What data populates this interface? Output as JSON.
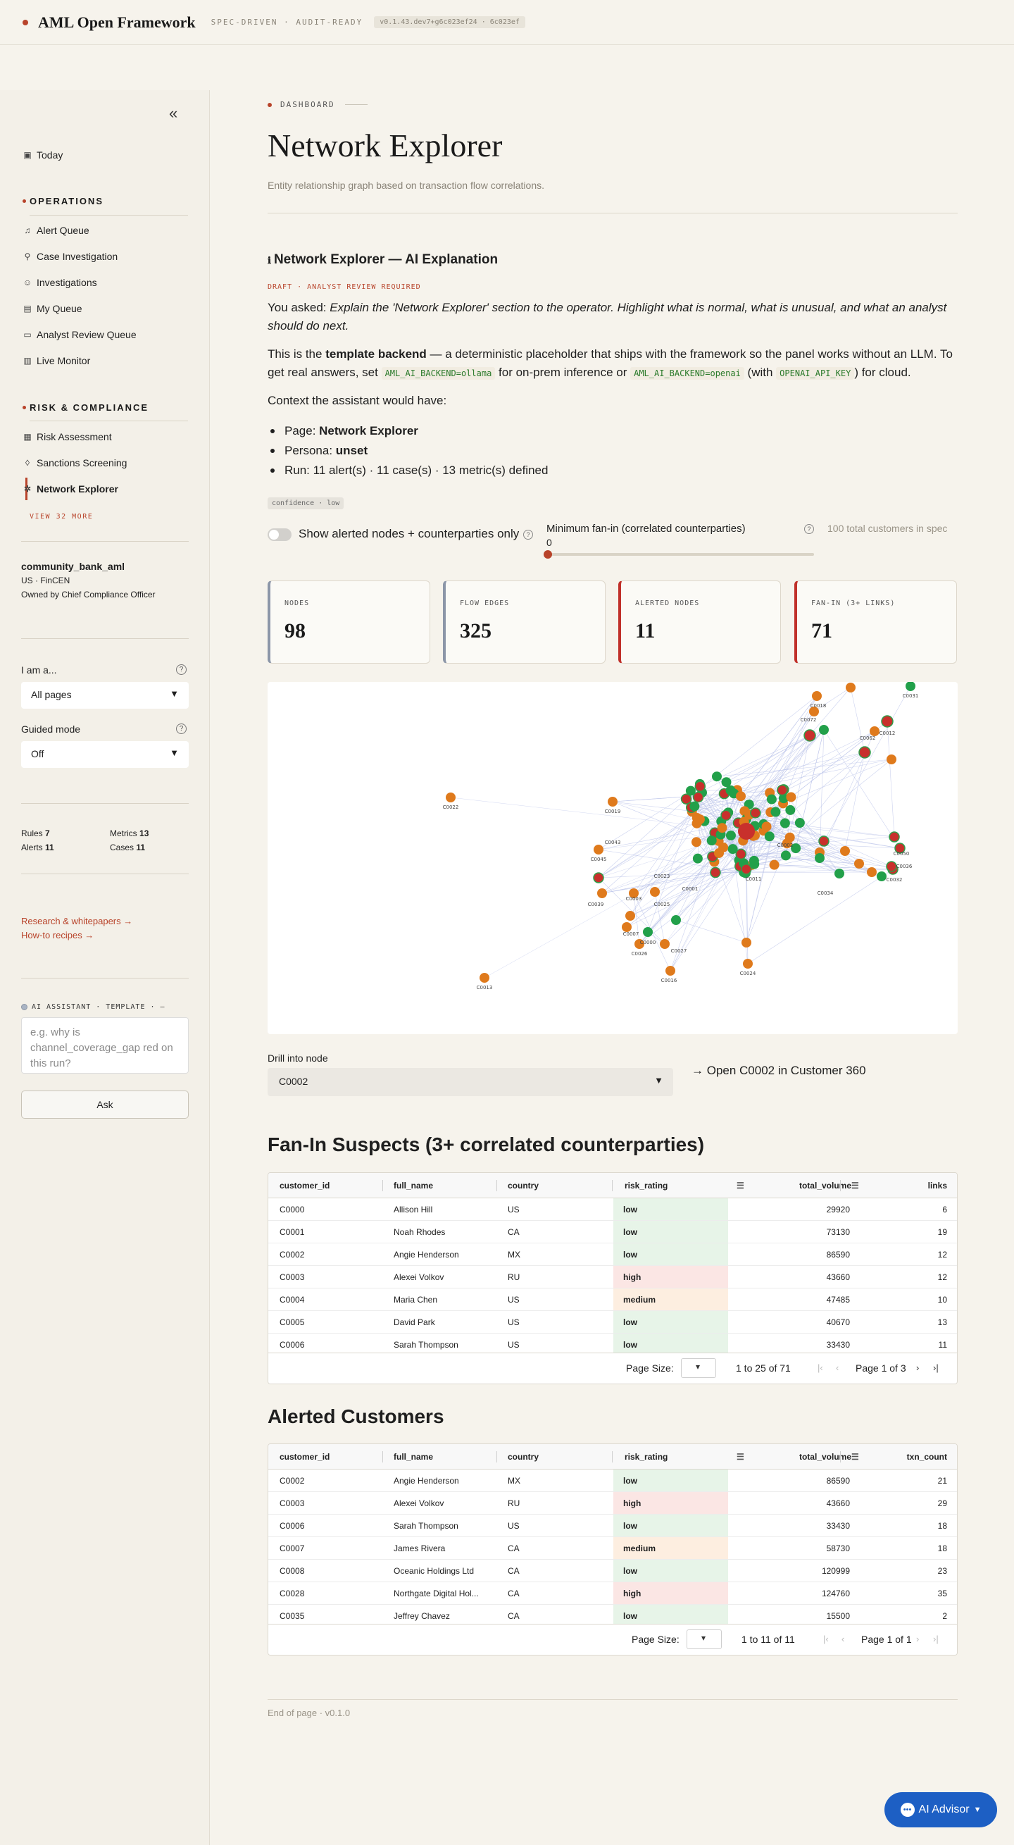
{
  "header": {
    "brand": "AML Open Framework",
    "tagline": "SPEC-DRIVEN · AUDIT-READY",
    "version": "v0.1.43.dev7+g6c023ef24 · 6c023ef"
  },
  "sidebar": {
    "collapse_icon": "«",
    "today": "Today",
    "operations_title": "OPERATIONS",
    "operations": [
      "Alert Queue",
      "Case Investigation",
      "Investigations",
      "My Queue",
      "Analyst Review Queue",
      "Live Monitor"
    ],
    "risk_title": "RISK & COMPLIANCE",
    "risk": [
      "Risk Assessment",
      "Sanctions Screening",
      "Network Explorer"
    ],
    "view_more": "VIEW 32 MORE",
    "spec_name": "community_bank_aml",
    "spec_region": "US · FinCEN",
    "spec_owner": "Owned by Chief Compliance Officer",
    "persona_label": "I am a...",
    "persona_value": "All pages",
    "guided_label": "Guided mode",
    "guided_value": "Off",
    "stats": {
      "rules_label": "Rules",
      "rules": "7",
      "metrics_label": "Metrics",
      "metrics": "13",
      "alerts_label": "Alerts",
      "alerts": "11",
      "cases_label": "Cases",
      "cases": "11"
    },
    "link_research": "Research & whitepapers →",
    "link_recipes": "How-to recipes →",
    "ai_label": "AI ASSISTANT · TEMPLATE · —",
    "ai_placeholder": "e.g. why is channel_coverage_gap red on this run?",
    "ask_label": "Ask"
  },
  "page": {
    "breadcrumb": "DASHBOARD",
    "title": "Network Explorer",
    "subtitle": "Entity relationship graph based on transaction flow correlations."
  },
  "explanation": {
    "title": "Network Explorer — AI Explanation",
    "draft": "DRAFT · ANALYST REVIEW REQUIRED",
    "asked_prefix": "You asked: ",
    "asked": "Explain the 'Network Explorer' section to the operator. Highlight what is normal, what is unusual, and what an analyst should do next.",
    "p1_a": "This is the ",
    "p1_b": "template backend",
    "p1_c": " — a deterministic placeholder that ships with the framework so the panel works without an LLM. To get real answers, set ",
    "code1": "AML_AI_BACKEND=ollama",
    "p1_d": " for on-prem inference or ",
    "code2": "AML_AI_BACKEND=openai",
    "p1_e": " (with ",
    "code3": "OPENAI_API_KEY",
    "p1_f": ") for cloud.",
    "context": "Context the assistant would have:",
    "b1_label": "Page: ",
    "b1_value": "Network Explorer",
    "b2_label": "Persona: ",
    "b2_value": "unset",
    "b3": "Run: 11 alert(s) · 11 case(s) · 13 metric(s) defined",
    "confidence": "confidence · low"
  },
  "controls": {
    "toggle_label": "Show alerted nodes + counterparties only",
    "fanin_label": "Minimum fan-in (correlated counterparties)",
    "fanin_value": "0",
    "total_customers": "100 total customers in spec"
  },
  "cards": [
    {
      "label": "NODES",
      "value": "98"
    },
    {
      "label": "FLOW EDGES",
      "value": "325"
    },
    {
      "label": "ALERTED NODES",
      "value": "11"
    },
    {
      "label": "FAN-IN (3+ LINKS)",
      "value": "71"
    }
  ],
  "graph": {
    "colors": {
      "alerted": "#c8302c",
      "low_risk": "#22a04a",
      "other": "#df7a1c",
      "edge": "#b7c0e8"
    },
    "labels": [
      "C0031",
      "C0018",
      "C0072",
      "C0012",
      "C0062",
      "C0022",
      "C0019",
      "C0013",
      "C0016",
      "C0024",
      "C0036",
      "C0032",
      "C0050",
      "C0034",
      "C0011",
      "C0045",
      "C0039",
      "C0025",
      "C0007",
      "C0026",
      "C0027",
      "C0000",
      "C0023",
      "C0003",
      "C0001",
      "C0043",
      "C0002"
    ]
  },
  "drill": {
    "label": "Drill into node",
    "value": "C0002",
    "open": "→ Open C0002 in Customer 360"
  },
  "fanin_table": {
    "title": "Fan-In Suspects (3+ correlated counterparties)",
    "columns": [
      "customer_id",
      "full_name",
      "country",
      "risk_rating",
      "total_volume",
      "links"
    ],
    "rows": [
      [
        "C0000",
        "Allison Hill",
        "US",
        "low",
        "29920",
        "6"
      ],
      [
        "C0001",
        "Noah Rhodes",
        "CA",
        "low",
        "73130",
        "19"
      ],
      [
        "C0002",
        "Angie Henderson",
        "MX",
        "low",
        "86590",
        "12"
      ],
      [
        "C0003",
        "Alexei Volkov",
        "RU",
        "high",
        "43660",
        "12"
      ],
      [
        "C0004",
        "Maria Chen",
        "US",
        "medium",
        "47485",
        "10"
      ],
      [
        "C0005",
        "David Park",
        "US",
        "low",
        "40670",
        "13"
      ],
      [
        "C0006",
        "Sarah Thompson",
        "US",
        "low",
        "33430",
        "11"
      ]
    ],
    "page_size_label": "Page Size:",
    "range": "1 to 25 of 71",
    "page": "Page 1 of 3"
  },
  "alerted_table": {
    "title": "Alerted Customers",
    "columns": [
      "customer_id",
      "full_name",
      "country",
      "risk_rating",
      "total_volume",
      "txn_count"
    ],
    "rows": [
      [
        "C0002",
        "Angie Henderson",
        "MX",
        "low",
        "86590",
        "21"
      ],
      [
        "C0003",
        "Alexei Volkov",
        "RU",
        "high",
        "43660",
        "29"
      ],
      [
        "C0006",
        "Sarah Thompson",
        "US",
        "low",
        "33430",
        "18"
      ],
      [
        "C0007",
        "James Rivera",
        "CA",
        "medium",
        "58730",
        "18"
      ],
      [
        "C0008",
        "Oceanic Holdings Ltd",
        "CA",
        "low",
        "120999",
        "23"
      ],
      [
        "C0028",
        "Northgate Digital Hol...",
        "CA",
        "high",
        "124760",
        "35"
      ],
      [
        "C0035",
        "Jeffrey Chavez",
        "CA",
        "low",
        "15500",
        "2"
      ]
    ],
    "page_size_label": "Page Size:",
    "range": "1 to 11 of 11",
    "page": "Page 1 of 1"
  },
  "footer": {
    "end": "End of page · v0.1.0"
  },
  "advisor": {
    "label": "AI Advisor"
  }
}
